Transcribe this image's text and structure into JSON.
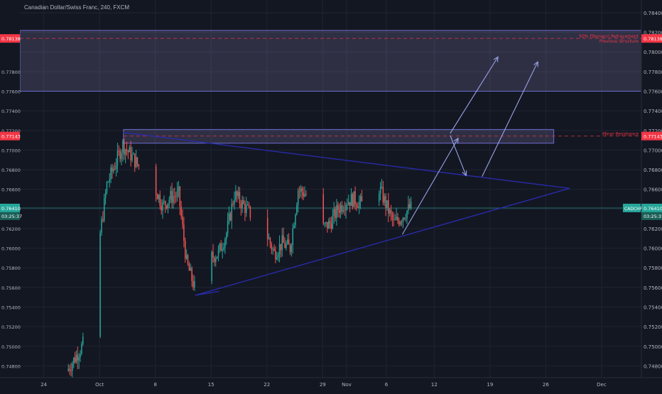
{
  "header": {
    "title": "Canadian Dollar/Swiss Franc, 240, FXCM"
  },
  "colors": {
    "background": "#131722",
    "grid": "#1f2433",
    "up": "#26a69a",
    "down": "#ef5350",
    "zone_fill": "#7a6f9e",
    "trend": "#2a2aa8",
    "arrow": "#9aa3e6",
    "current_price": "#26a69a",
    "level_red": "#f23645",
    "axis_text": "#b2b5be"
  },
  "chart_data": {
    "type": "candlestick",
    "symbol_label": "CADCHF",
    "y_ticks": [
      0.748,
      0.75,
      0.752,
      0.754,
      0.756,
      0.758,
      0.76,
      0.762,
      0.764,
      0.766,
      0.768,
      0.77,
      0.772,
      0.774,
      0.776,
      0.778,
      0.78,
      0.782,
      0.784
    ],
    "y_tick_labels": [
      "0.74800",
      "0.75000",
      "0.75200",
      "0.75400",
      "0.75600",
      "0.75800",
      "0.76000",
      "0.76200",
      "0.76400",
      "0.76600",
      "0.76800",
      "0.77000",
      "0.77200",
      "0.77400",
      "0.77600",
      "0.77800",
      "0.78000",
      "0.78200",
      "0.78400"
    ],
    "ylim": [
      0.7468,
      0.7853
    ],
    "x_labels": [
      {
        "text": "24",
        "date": "2018-09-24"
      },
      {
        "text": "Oct",
        "date": "2018-10-01"
      },
      {
        "text": "8",
        "date": "2018-10-08"
      },
      {
        "text": "15",
        "date": "2018-10-15"
      },
      {
        "text": "22",
        "date": "2018-10-22"
      },
      {
        "text": "29",
        "date": "2018-10-29"
      },
      {
        "text": "Nov",
        "date": "2018-11-01"
      },
      {
        "text": "6",
        "date": "2018-11-06"
      },
      {
        "text": "12",
        "date": "2018-11-12"
      },
      {
        "text": "19",
        "date": "2018-11-19"
      },
      {
        "text": "26",
        "date": "2018-11-26"
      },
      {
        "text": "Dec",
        "date": "2018-12-03"
      }
    ],
    "xlim": [
      "2018-09-21",
      "2018-12-08"
    ],
    "price_anchors": [
      [
        "2018-09-27",
        0.7475
      ],
      [
        "2018-09-28",
        0.7488
      ],
      [
        "2018-09-29",
        0.7502
      ],
      [
        "2018-09-30",
        0.7535
      ],
      [
        "2018-10-01",
        0.7605
      ],
      [
        "2018-10-02",
        0.7665
      ],
      [
        "2018-10-03",
        0.7685
      ],
      [
        "2018-10-04",
        0.7705
      ],
      [
        "2018-10-05",
        0.7695
      ],
      [
        "2018-10-07",
        0.7672
      ],
      [
        "2018-10-08",
        0.7662
      ],
      [
        "2018-10-09",
        0.7643
      ],
      [
        "2018-10-10",
        0.7652
      ],
      [
        "2018-10-11",
        0.7655
      ],
      [
        "2018-10-12",
        0.7585
      ],
      [
        "2018-10-13",
        0.756
      ],
      [
        "2018-10-14",
        0.76
      ],
      [
        "2018-10-15",
        0.759
      ],
      [
        "2018-10-16",
        0.7595
      ],
      [
        "2018-10-17",
        0.7615
      ],
      [
        "2018-10-18",
        0.7655
      ],
      [
        "2018-10-19",
        0.7645
      ],
      [
        "2018-10-20",
        0.7635
      ],
      [
        "2018-10-22",
        0.7615
      ],
      [
        "2018-10-23",
        0.7595
      ],
      [
        "2018-10-24",
        0.7605
      ],
      [
        "2018-10-25",
        0.76
      ],
      [
        "2018-10-26",
        0.766
      ],
      [
        "2018-10-27",
        0.7655
      ],
      [
        "2018-10-28",
        0.764
      ],
      [
        "2018-10-29",
        0.762
      ],
      [
        "2018-10-30",
        0.7625
      ],
      [
        "2018-10-31",
        0.764
      ],
      [
        "2018-11-01",
        0.7648
      ],
      [
        "2018-11-02",
        0.765
      ],
      [
        "2018-11-03",
        0.7645
      ],
      [
        "2018-11-04",
        0.7655
      ],
      [
        "2018-11-05",
        0.7665
      ],
      [
        "2018-11-06",
        0.7645
      ],
      [
        "2018-11-07",
        0.7625
      ],
      [
        "2018-11-08",
        0.7632
      ],
      [
        "2018-11-09",
        0.7641
      ]
    ],
    "last_price": 0.7641,
    "last_price_label": "0.76410",
    "countdown_label": "03:25:37",
    "zones": [
      {
        "name": "upper-resistance-zone",
        "from": "2018-09-21",
        "to": "2018-12-08",
        "y0": 0.776,
        "y1": 0.7822
      },
      {
        "name": "minor-resistance-zone",
        "from": "2018-10-04",
        "to": "2018-11-27",
        "y0": 0.7707,
        "y1": 0.7721
      }
    ],
    "levels": [
      {
        "name": "upper-level",
        "price": 0.78138,
        "label": "0.78138",
        "note_1": "50% Fibonacci Retracement",
        "note_2": "Previous Structure",
        "from": "2018-09-21"
      },
      {
        "name": "minor-level",
        "price": 0.77143,
        "label": "0.77143",
        "note_1": "Minor Resistance",
        "note_2": "",
        "from": "2018-10-04"
      }
    ],
    "trendlines": [
      {
        "name": "upper-trendline",
        "x1": "2018-10-04",
        "y1": 0.7718,
        "x2": "2018-11-29",
        "y2": 0.7661
      },
      {
        "name": "lower-trendline",
        "x1": "2018-10-13",
        "y1": 0.7552,
        "x2": "2018-11-29",
        "y2": 0.7661
      },
      {
        "name": "lower-trendline-base",
        "x1": "2018-10-13",
        "y1": 0.7552,
        "x2": "2018-10-16",
        "y2": 0.7556
      }
    ],
    "arrows": [
      {
        "name": "projection-arrow-1",
        "points": [
          [
            "2018-11-08",
            0.7614
          ],
          [
            "2018-11-15",
            0.7712
          ]
        ]
      },
      {
        "name": "projection-arrow-2",
        "points": [
          [
            "2018-11-14",
            0.7715
          ],
          [
            "2018-11-16",
            0.7674
          ]
        ]
      },
      {
        "name": "projection-arrow-3",
        "points": [
          [
            "2018-11-14",
            0.7717
          ],
          [
            "2018-11-20",
            0.7795
          ]
        ]
      },
      {
        "name": "projection-arrow-4",
        "points": [
          [
            "2018-11-18",
            0.7673
          ],
          [
            "2018-11-25",
            0.779
          ]
        ]
      }
    ]
  }
}
